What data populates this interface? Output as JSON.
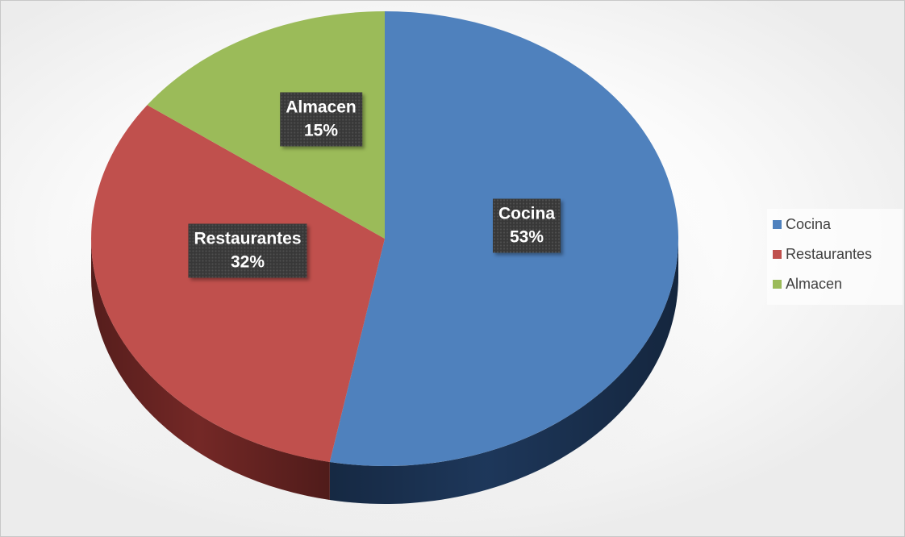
{
  "chart_data": {
    "type": "pie",
    "style": "3d",
    "title": "",
    "categories": [
      "Cocina",
      "Restaurantes",
      "Almacen"
    ],
    "values": [
      53,
      32,
      15
    ],
    "value_labels": [
      "53%",
      "32%",
      "15%"
    ],
    "colors": [
      "#4F81BD",
      "#C0504D",
      "#9BBB59"
    ],
    "shadow_colors": [
      "#1F3A5F",
      "#7A2A28",
      "#5E7430"
    ],
    "legend": {
      "position": "right",
      "items": [
        {
          "label": "Cocina",
          "color": "#4F81BD"
        },
        {
          "label": "Restaurantes",
          "color": "#C0504D"
        },
        {
          "label": "Almacen",
          "color": "#9BBB59"
        }
      ]
    }
  }
}
